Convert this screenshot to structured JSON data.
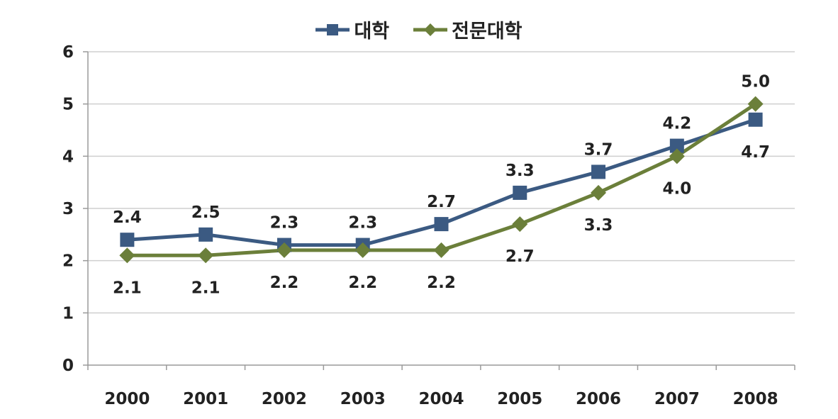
{
  "chart_data": {
    "type": "line",
    "title": "",
    "xlabel": "",
    "ylabel": "",
    "categories": [
      "2000",
      "2001",
      "2002",
      "2003",
      "2004",
      "2005",
      "2006",
      "2007",
      "2008"
    ],
    "ylim": [
      0,
      6
    ],
    "yticks": [
      "0",
      "1",
      "2",
      "3",
      "4",
      "5",
      "6"
    ],
    "grid": true,
    "legend_position": "top",
    "series": [
      {
        "name": "대학",
        "color": "#3b5a82",
        "marker": "square",
        "values": [
          2.4,
          2.5,
          2.3,
          2.3,
          2.7,
          3.3,
          3.7,
          4.2,
          4.7
        ],
        "labels": [
          "2.4",
          "2.5",
          "2.3",
          "2.3",
          "2.7",
          "3.3",
          "3.7",
          "4.2",
          "4.7"
        ]
      },
      {
        "name": "전문대학",
        "color": "#6b7f3a",
        "marker": "diamond",
        "values": [
          2.1,
          2.1,
          2.2,
          2.2,
          2.2,
          2.7,
          3.3,
          4.0,
          5.0
        ],
        "labels": [
          "2.1",
          "2.1",
          "2.2",
          "2.2",
          "2.2",
          "2.7",
          "3.3",
          "4.0",
          "5.0"
        ]
      }
    ]
  }
}
